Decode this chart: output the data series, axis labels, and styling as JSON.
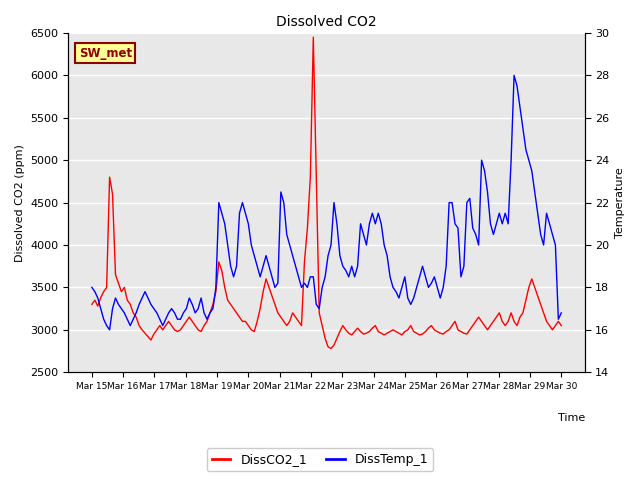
{
  "title": "Dissolved CO2",
  "xlabel": "Time",
  "ylabel_left": "Dissolved CO2 (ppm)",
  "ylabel_right": "Temperature",
  "ylim_left": [
    2500,
    6500
  ],
  "ylim_right": [
    14,
    30
  ],
  "xtick_labels": [
    "Mar 15",
    "Mar 16",
    "Mar 17",
    "Mar 18",
    "Mar 19",
    "Mar 20",
    "Mar 21",
    "Mar 22",
    "Mar 23",
    "Mar 24",
    "Mar 25",
    "Mar 26",
    "Mar 27",
    "Mar 28",
    "Mar 29",
    "Mar 30"
  ],
  "annotation_text": "SW_met",
  "annotation_color": "#8B0000",
  "annotation_bg": "#FFFF99",
  "legend_labels": [
    "DissCO2_1",
    "DissTemp_1"
  ],
  "line_colors": [
    "#FF0000",
    "#0000FF"
  ],
  "background_color": "#E8E8E8",
  "co2_data": [
    3300,
    3350,
    3280,
    3380,
    3450,
    3500,
    4800,
    4600,
    3650,
    3550,
    3450,
    3500,
    3350,
    3300,
    3200,
    3150,
    3050,
    3000,
    2960,
    2920,
    2880,
    2950,
    3000,
    3050,
    3000,
    3050,
    3100,
    3050,
    3000,
    2980,
    3000,
    3050,
    3100,
    3150,
    3100,
    3050,
    3000,
    2980,
    3050,
    3100,
    3200,
    3300,
    3450,
    3800,
    3700,
    3500,
    3350,
    3300,
    3250,
    3200,
    3150,
    3100,
    3100,
    3050,
    3000,
    2980,
    3100,
    3250,
    3450,
    3600,
    3500,
    3400,
    3300,
    3200,
    3150,
    3100,
    3050,
    3100,
    3200,
    3150,
    3100,
    3050,
    3800,
    4200,
    4800,
    6450,
    4800,
    3200,
    3050,
    2900,
    2800,
    2780,
    2820,
    2900,
    2980,
    3050,
    3000,
    2960,
    2940,
    2980,
    3020,
    2980,
    2950,
    2960,
    2980,
    3020,
    3050,
    2980,
    2960,
    2940,
    2960,
    2980,
    3000,
    2980,
    2960,
    2940,
    2980,
    3000,
    3050,
    2980,
    2960,
    2940,
    2950,
    2980,
    3020,
    3050,
    3000,
    2980,
    2960,
    2950,
    2980,
    3000,
    3050,
    3100,
    3000,
    2980,
    2960,
    2950,
    3000,
    3050,
    3100,
    3150,
    3100,
    3050,
    3000,
    3050,
    3100,
    3150,
    3200,
    3100,
    3050,
    3100,
    3200,
    3100,
    3050,
    3150,
    3200,
    3350,
    3500,
    3600,
    3500,
    3400,
    3300,
    3200,
    3100,
    3050,
    3000,
    3050,
    3100,
    3050
  ],
  "temp_data": [
    18.0,
    17.8,
    17.5,
    17.0,
    16.5,
    16.2,
    16.0,
    17.0,
    17.5,
    17.2,
    17.0,
    16.8,
    16.5,
    16.2,
    16.5,
    16.8,
    17.2,
    17.5,
    17.8,
    17.5,
    17.2,
    17.0,
    16.8,
    16.5,
    16.2,
    16.5,
    16.8,
    17.0,
    16.8,
    16.5,
    16.5,
    16.8,
    17.0,
    17.5,
    17.2,
    16.8,
    17.0,
    17.5,
    16.8,
    16.5,
    16.8,
    17.0,
    18.0,
    22.0,
    21.5,
    21.0,
    20.0,
    19.0,
    18.5,
    19.0,
    21.5,
    22.0,
    21.5,
    21.0,
    20.0,
    19.5,
    19.0,
    18.5,
    19.0,
    19.5,
    19.0,
    18.5,
    18.0,
    18.2,
    22.5,
    22.0,
    20.5,
    20.0,
    19.5,
    19.0,
    18.5,
    18.0,
    18.2,
    18.0,
    18.5,
    18.5,
    17.2,
    17.0,
    18.0,
    18.5,
    19.5,
    20.0,
    22.0,
    21.0,
    19.5,
    19.0,
    18.8,
    18.5,
    19.0,
    18.5,
    19.0,
    21.0,
    20.5,
    20.0,
    21.0,
    21.5,
    21.0,
    21.5,
    21.0,
    20.0,
    19.5,
    18.5,
    18.0,
    17.8,
    17.5,
    18.0,
    18.5,
    17.5,
    17.2,
    17.5,
    18.0,
    18.5,
    19.0,
    18.5,
    18.0,
    18.2,
    18.5,
    18.0,
    17.5,
    18.0,
    19.0,
    22.0,
    22.0,
    21.0,
    20.8,
    18.5,
    19.0,
    22.0,
    22.2,
    20.8,
    20.5,
    20.0,
    24.0,
    23.5,
    22.5,
    21.0,
    20.5,
    21.0,
    21.5,
    21.0,
    21.5,
    21.0,
    24.0,
    28.0,
    27.5,
    26.5,
    25.5,
    24.5,
    24.0,
    23.5,
    22.5,
    21.5,
    20.5,
    20.0,
    21.5,
    21.0,
    20.5,
    20.0,
    16.5,
    16.8
  ]
}
